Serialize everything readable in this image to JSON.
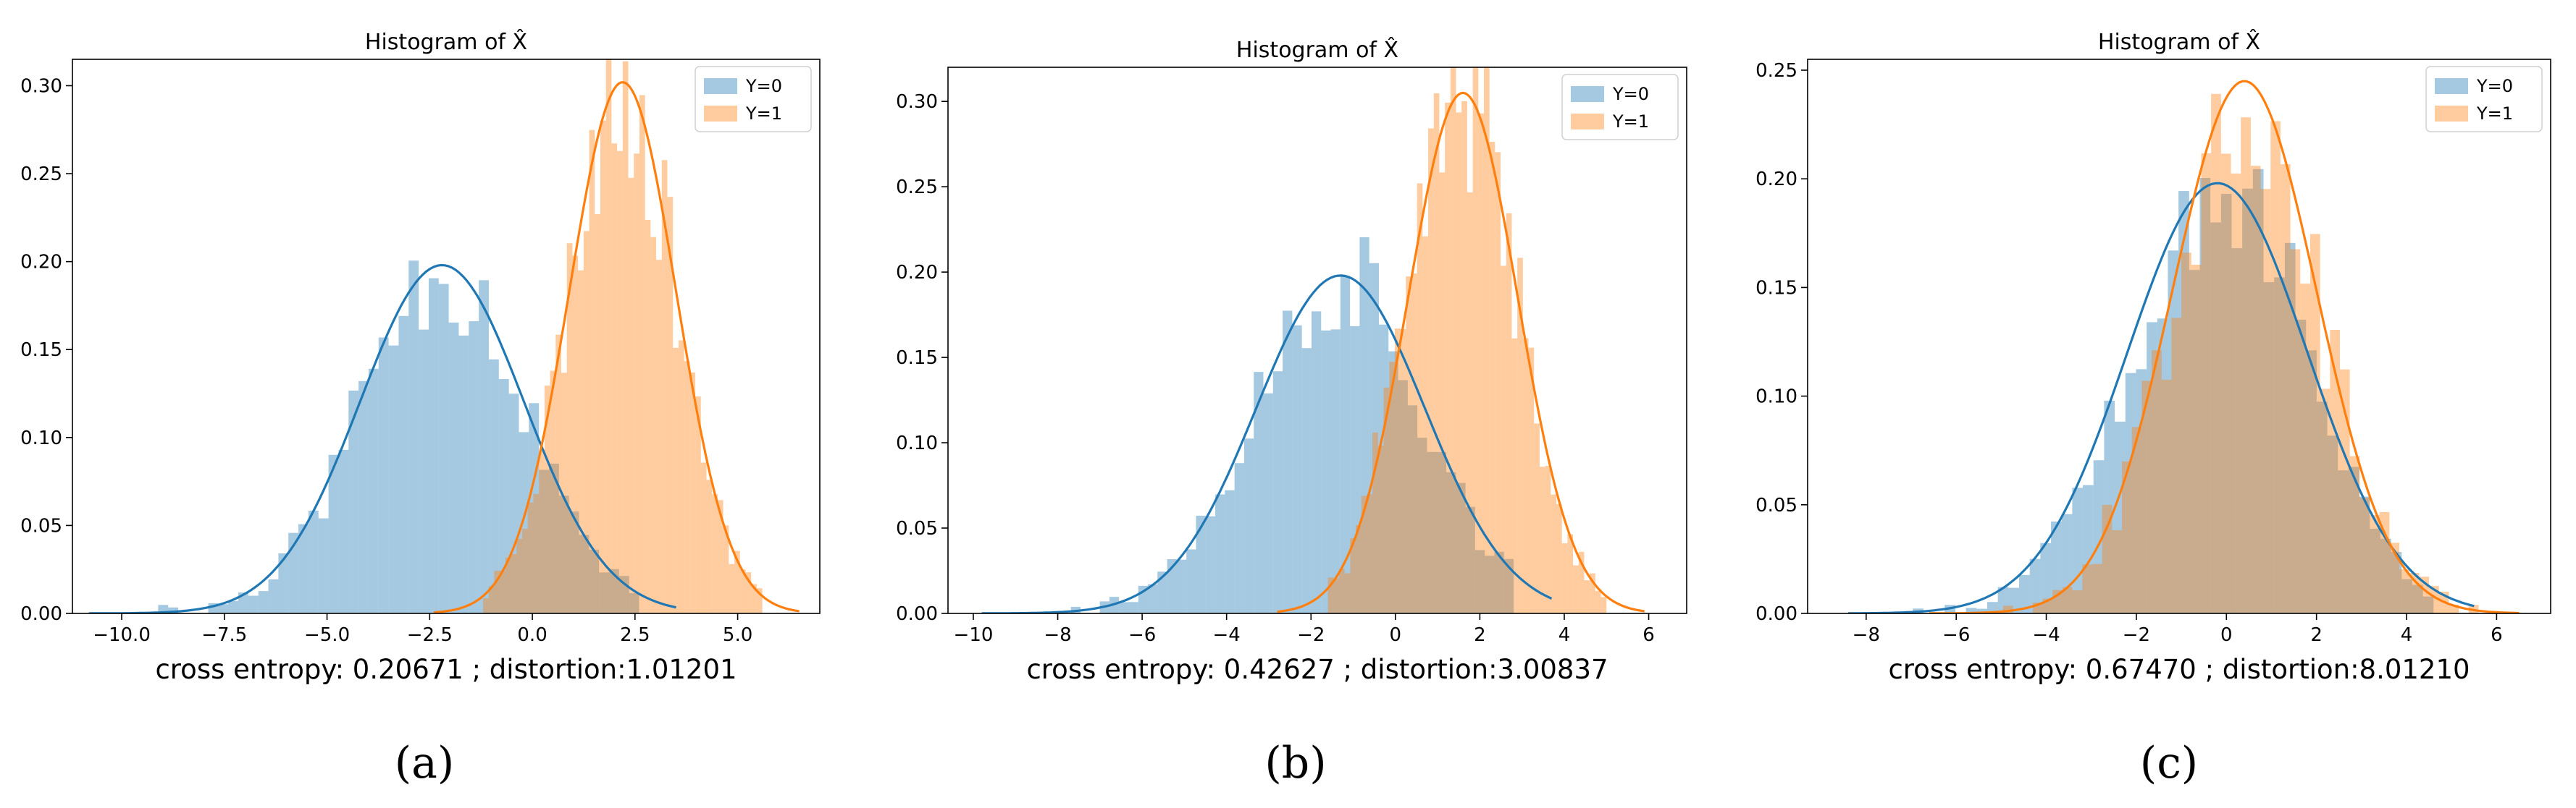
{
  "colors": {
    "y0_fill": "#1f77b4",
    "y1_fill": "#ff7f0e",
    "y0_line": "#1f77b4",
    "y1_line": "#ff7f0e"
  },
  "chart_data": [
    {
      "panel_label": "(a)",
      "type": "bar",
      "title": "Histogram of X̂",
      "caption": "cross entropy: 0.20671 ; distortion:1.01201",
      "xlim": [
        -11.2,
        7.0
      ],
      "ylim": [
        0,
        0.315
      ],
      "xticks": [
        -10.0,
        -7.5,
        -5.0,
        -2.5,
        0.0,
        2.5,
        5.0
      ],
      "xtick_labels": [
        "−10.0",
        "−7.5",
        "−5.0",
        "−2.5",
        "0.0",
        "2.5",
        "5.0"
      ],
      "yticks": [
        0.0,
        0.05,
        0.1,
        0.15,
        0.2,
        0.25,
        0.3
      ],
      "ytick_labels": [
        "0.00",
        "0.05",
        "0.10",
        "0.15",
        "0.20",
        "0.25",
        "0.30"
      ],
      "legend": [
        "Y=0",
        "Y=1"
      ],
      "legend_position": "top-right",
      "series": [
        {
          "name": "Y=0",
          "mean": -2.2,
          "sd": 2.0,
          "kde_peak": 0.198,
          "hist_range": [
            -9.6,
            2.6
          ],
          "seed": 11
        },
        {
          "name": "Y=1",
          "mean": 2.2,
          "sd": 1.3,
          "kde_peak": 0.302,
          "hist_range": [
            -1.2,
            5.6
          ],
          "seed": 23
        }
      ]
    },
    {
      "panel_label": "(b)",
      "type": "bar",
      "title": "Histogram of X̂",
      "caption": "cross entropy: 0.42627 ; distortion:3.00837",
      "xlim": [
        -10.6,
        6.9
      ],
      "ylim": [
        0,
        0.32
      ],
      "xticks": [
        -10,
        -8,
        -6,
        -4,
        -2,
        0,
        2,
        4,
        6
      ],
      "xtick_labels": [
        "−10",
        "−8",
        "−6",
        "−4",
        "−2",
        "0",
        "2",
        "4",
        "6"
      ],
      "yticks": [
        0.0,
        0.05,
        0.1,
        0.15,
        0.2,
        0.25,
        0.3
      ],
      "ytick_labels": [
        "0.00",
        "0.05",
        "0.10",
        "0.15",
        "0.20",
        "0.25",
        "0.30"
      ],
      "legend": [
        "Y=0",
        "Y=1"
      ],
      "legend_position": "top-right",
      "series": [
        {
          "name": "Y=0",
          "mean": -1.3,
          "sd": 2.0,
          "kde_peak": 0.198,
          "hist_range": [
            -8.6,
            2.8
          ],
          "seed": 37
        },
        {
          "name": "Y=1",
          "mean": 1.6,
          "sd": 1.3,
          "kde_peak": 0.305,
          "hist_range": [
            -1.6,
            5.0
          ],
          "seed": 41
        }
      ]
    },
    {
      "panel_label": "(c)",
      "type": "bar",
      "title": "Histogram of X̂",
      "caption": "cross entropy: 0.67470 ; distortion:8.01210",
      "xlim": [
        -9.3,
        7.2
      ],
      "ylim": [
        0,
        0.255
      ],
      "xticks": [
        -8,
        -6,
        -4,
        -2,
        0,
        2,
        4,
        6
      ],
      "xtick_labels": [
        "−8",
        "−6",
        "−4",
        "−2",
        "0",
        "2",
        "4",
        "6"
      ],
      "yticks": [
        0.0,
        0.05,
        0.1,
        0.15,
        0.2,
        0.25
      ],
      "ytick_labels": [
        "0.00",
        "0.05",
        "0.10",
        "0.15",
        "0.20",
        "0.25"
      ],
      "legend": [
        "Y=0",
        "Y=1"
      ],
      "legend_position": "top-right",
      "series": [
        {
          "name": "Y=0",
          "mean": -0.2,
          "sd": 2.0,
          "kde_peak": 0.198,
          "hist_range": [
            -7.2,
            4.6
          ],
          "seed": 53
        },
        {
          "name": "Y=1",
          "mean": 0.4,
          "sd": 1.6,
          "kde_peak": 0.245,
          "hist_range": [
            -5.4,
            5.6
          ],
          "seed": 67
        }
      ]
    }
  ]
}
